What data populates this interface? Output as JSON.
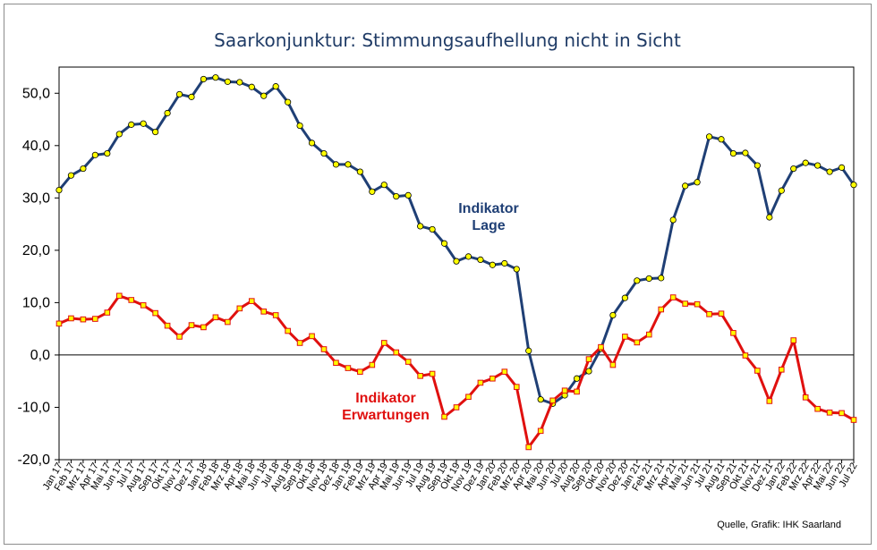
{
  "chart_data": {
    "type": "line",
    "title": "Saarkonjunktur: Stimmungsaufhellung nicht in Sicht",
    "source": "Quelle, Grafik: IHK Saarland",
    "ylim": [
      -20,
      55
    ],
    "yticks": [
      -20,
      -10,
      0,
      10,
      20,
      30,
      40,
      50
    ],
    "ytick_labels": [
      "-20,0",
      "-10,0",
      "0,0",
      "10,0",
      "20,0",
      "30,0",
      "40,0",
      "50,0"
    ],
    "categories": [
      "Jan 17",
      "Feb 17",
      "Mrz 17",
      "Apr 17",
      "Mai 17",
      "Jun 17",
      "Jul 17",
      "Aug 17",
      "Sep 17",
      "Okt 17",
      "Nov 17",
      "Dez 17",
      "Jan 18",
      "Feb 18",
      "Mrz 18",
      "Apr 18",
      "Mai 18",
      "Jun 18",
      "Jul 18",
      "Aug 18",
      "Sep 18",
      "Okt 18",
      "Nov 18",
      "Dez 18",
      "Jan 19",
      "Feb 19",
      "Mrz 19",
      "Apr 19",
      "Mai 19",
      "Jun 19",
      "Jul 19",
      "Aug 19",
      "Sep 19",
      "Okt 19",
      "Nov 19",
      "Dez 19",
      "Jan 20",
      "Feb 20",
      "Mrz 20",
      "Apr 20",
      "Mai 20",
      "Jun 20",
      "Jul 20",
      "Aug 20",
      "Sep 20",
      "Okt 20",
      "Nov 20",
      "Dez 20",
      "Jan 21",
      "Feb 21",
      "Mrz 21",
      "Apr 21",
      "Mai 21",
      "Jun 21",
      "Jul 21",
      "Aug 21",
      "Sep 21",
      "Okt 21",
      "Nov 21",
      "Dez 21",
      "Jan 22",
      "Feb 22",
      "Mrz 22",
      "Apr 22",
      "Mai 22",
      "Jun 22",
      "Jul 22"
    ],
    "series": [
      {
        "name": "Indikator Lage",
        "label_lines": [
          "Indikator",
          "Lage"
        ],
        "color": "#1f3f75",
        "marker": "circle",
        "values": [
          31.5,
          34.3,
          35.6,
          38.2,
          38.5,
          42.2,
          44.0,
          44.2,
          42.6,
          46.2,
          49.8,
          49.3,
          52.7,
          53.0,
          52.2,
          52.1,
          51.2,
          49.5,
          51.3,
          48.3,
          43.8,
          40.5,
          38.5,
          36.4,
          36.4,
          35.0,
          31.2,
          32.5,
          30.3,
          30.5,
          24.6,
          24.0,
          21.3,
          17.9,
          18.8,
          18.2,
          17.2,
          17.5,
          16.4,
          0.8,
          -8.5,
          -9.3,
          -7.7,
          -4.5,
          -3.1,
          1.2,
          7.6,
          10.9,
          14.2,
          14.6,
          14.7,
          25.8,
          32.3,
          33.0,
          41.7,
          41.2,
          38.5,
          38.6,
          36.2,
          26.3,
          31.4,
          35.6,
          36.7,
          36.2,
          35.0,
          35.8,
          32.5
        ]
      },
      {
        "name": "Indikator Erwartungen",
        "label_lines": [
          "Indikator",
          "Erwartungen"
        ],
        "color": "#e0100f",
        "marker": "square",
        "values": [
          6.0,
          7.0,
          6.8,
          6.9,
          8.1,
          11.3,
          10.5,
          9.5,
          8.0,
          5.6,
          3.5,
          5.7,
          5.3,
          7.2,
          6.3,
          8.9,
          10.3,
          8.3,
          7.6,
          4.6,
          2.3,
          3.6,
          1.1,
          -1.5,
          -2.5,
          -3.2,
          -1.9,
          2.3,
          0.5,
          -1.3,
          -4.0,
          -3.6,
          -11.8,
          -10.0,
          -8.0,
          -5.3,
          -4.5,
          -3.2,
          -6.1,
          -17.6,
          -14.5,
          -8.7,
          -6.8,
          -7.0,
          -0.8,
          1.5,
          -1.9,
          3.5,
          2.4,
          3.9,
          8.7,
          11.0,
          9.8,
          9.7,
          7.8,
          7.9,
          4.2,
          -0.1,
          -3.0,
          -8.8,
          -2.8,
          2.8,
          -8.1,
          -10.3,
          -11.0,
          -11.1,
          -12.4
        ]
      }
    ]
  }
}
